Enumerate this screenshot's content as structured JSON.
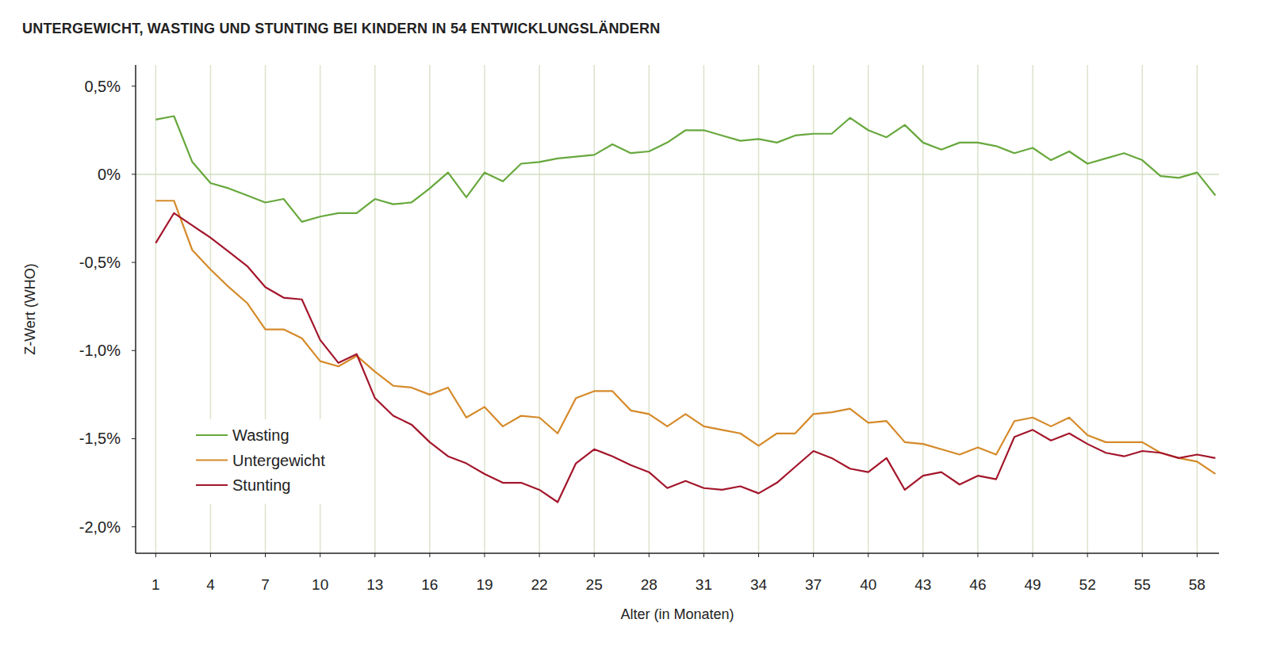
{
  "chart_data": {
    "type": "line",
    "title": "UNTERGEWICHT, WASTING UND STUNTING BEI KINDERN IN 54 ENTWICKLUNGSLÄNDERN",
    "x_label": "Alter (in Monaten)",
    "y_label": "Z-Wert (WHO)",
    "x": [
      1,
      2,
      3,
      4,
      5,
      6,
      7,
      8,
      9,
      10,
      11,
      12,
      13,
      14,
      15,
      16,
      17,
      18,
      19,
      20,
      21,
      22,
      23,
      24,
      25,
      26,
      27,
      28,
      29,
      30,
      31,
      32,
      33,
      34,
      35,
      36,
      37,
      38,
      39,
      40,
      41,
      42,
      43,
      44,
      45,
      46,
      47,
      48,
      49,
      50,
      51,
      52,
      53,
      54,
      55,
      56,
      57,
      58,
      59
    ],
    "xlim": [
      -0.1,
      59.2
    ],
    "xticks": [
      1,
      4,
      7,
      10,
      13,
      16,
      19,
      22,
      25,
      28,
      31,
      34,
      37,
      40,
      43,
      46,
      49,
      52,
      55,
      58
    ],
    "ylim": [
      -2.15,
      0.62
    ],
    "yticks": [
      {
        "value": 0.5,
        "label": "0,5%"
      },
      {
        "value": 0,
        "label": "0%"
      },
      {
        "value": -0.5,
        "label": "-0,5%"
      },
      {
        "value": -1.0,
        "label": "-1,0%"
      },
      {
        "value": -1.5,
        "label": "-1,5%"
      },
      {
        "value": -2.0,
        "label": "-2,0%"
      }
    ],
    "grid": true,
    "legend": "lower left",
    "series": [
      {
        "name": "Wasting",
        "color": "#67a83d",
        "values": [
          0.31,
          0.33,
          0.07,
          -0.05,
          -0.08,
          -0.12,
          -0.16,
          -0.14,
          -0.27,
          -0.24,
          -0.22,
          -0.22,
          -0.14,
          -0.17,
          -0.16,
          -0.08,
          0.01,
          -0.13,
          0.01,
          -0.04,
          0.06,
          0.07,
          0.09,
          0.1,
          0.11,
          0.17,
          0.12,
          0.13,
          0.18,
          0.25,
          0.25,
          0.22,
          0.19,
          0.2,
          0.18,
          0.22,
          0.23,
          0.23,
          0.32,
          0.25,
          0.21,
          0.28,
          0.18,
          0.14,
          0.18,
          0.18,
          0.16,
          0.12,
          0.15,
          0.08,
          0.13,
          0.06,
          0.09,
          0.12,
          0.08,
          -0.01,
          -0.02,
          0.01,
          -0.12
        ]
      },
      {
        "name": "Untergewicht",
        "color": "#d58a2a",
        "values": [
          -0.15,
          -0.15,
          -0.43,
          -0.54,
          -0.64,
          -0.73,
          -0.88,
          -0.88,
          -0.93,
          -1.06,
          -1.09,
          -1.03,
          -1.12,
          -1.2,
          -1.21,
          -1.25,
          -1.21,
          -1.38,
          -1.32,
          -1.43,
          -1.37,
          -1.38,
          -1.47,
          -1.27,
          -1.23,
          -1.23,
          -1.34,
          -1.36,
          -1.43,
          -1.36,
          -1.43,
          -1.45,
          -1.47,
          -1.54,
          -1.47,
          -1.47,
          -1.36,
          -1.35,
          -1.33,
          -1.41,
          -1.4,
          -1.52,
          -1.53,
          -1.56,
          -1.59,
          -1.55,
          -1.59,
          -1.4,
          -1.38,
          -1.43,
          -1.38,
          -1.48,
          -1.52,
          -1.52,
          -1.52,
          -1.58,
          -1.61,
          -1.63,
          -1.7
        ]
      },
      {
        "name": "Stunting",
        "color": "#a3162b",
        "values": [
          -0.39,
          -0.22,
          -0.29,
          -0.36,
          -0.44,
          -0.52,
          -0.64,
          -0.7,
          -0.71,
          -0.94,
          -1.07,
          -1.02,
          -1.27,
          -1.37,
          -1.42,
          -1.52,
          -1.6,
          -1.64,
          -1.7,
          -1.75,
          -1.75,
          -1.79,
          -1.86,
          -1.64,
          -1.56,
          -1.6,
          -1.65,
          -1.69,
          -1.78,
          -1.74,
          -1.78,
          -1.79,
          -1.77,
          -1.81,
          -1.75,
          -1.66,
          -1.57,
          -1.61,
          -1.67,
          -1.69,
          -1.61,
          -1.79,
          -1.71,
          -1.69,
          -1.76,
          -1.71,
          -1.73,
          -1.49,
          -1.45,
          -1.51,
          -1.47,
          -1.53,
          -1.58,
          -1.6,
          -1.57,
          -1.58,
          -1.61,
          -1.59,
          -1.61
        ]
      }
    ]
  }
}
